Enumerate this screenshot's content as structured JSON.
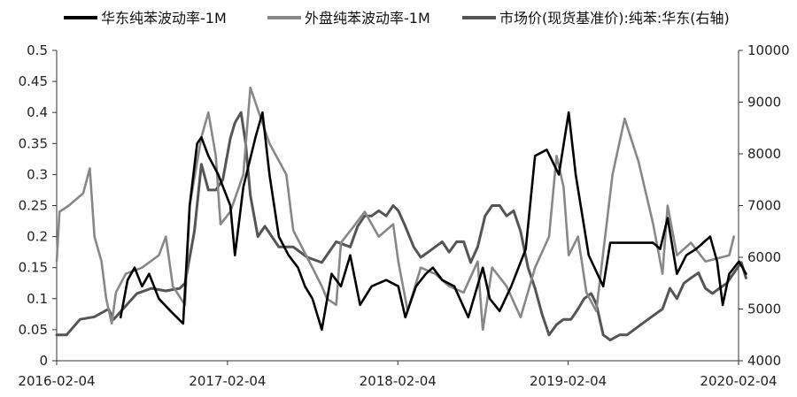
{
  "chart_data": {
    "type": "line",
    "legend": {
      "placement": "top",
      "entries": [
        "华东纯苯波动率-1M",
        "外盘纯苯波动率-1M",
        "市场价(现货基准价):纯苯:华东(右轴)"
      ]
    },
    "x_ticks": [
      "2016-02-04",
      "2017-02-04",
      "2018-02-04",
      "2019-02-04",
      "2020-02-04"
    ],
    "x_range": [
      "2016-02-04",
      "2020-02-04"
    ],
    "y_left": {
      "ticks": [
        "0",
        "0.05",
        "0.1",
        "0.15",
        "0.2",
        "0.25",
        "0.3",
        "0.35",
        "0.4",
        "0.45",
        "0.5"
      ],
      "range": [
        0,
        0.5
      ]
    },
    "y_right": {
      "ticks": [
        "4000",
        "5000",
        "6000",
        "7000",
        "8000",
        "9000",
        "10000"
      ],
      "range": [
        4000,
        10000
      ]
    },
    "grid": false,
    "series": [
      {
        "name": "华东纯苯波动率-1M",
        "axis": "left",
        "color": "#000000",
        "points": [
          [
            "2016-06-20",
            0.07
          ],
          [
            "2016-07-05",
            0.13
          ],
          [
            "2016-07-20",
            0.15
          ],
          [
            "2016-08-05",
            0.12
          ],
          [
            "2016-08-20",
            0.14
          ],
          [
            "2016-09-10",
            0.1
          ],
          [
            "2016-10-05",
            0.08
          ],
          [
            "2016-11-01",
            0.06
          ],
          [
            "2016-11-15",
            0.25
          ],
          [
            "2016-12-01",
            0.35
          ],
          [
            "2016-12-10",
            0.36
          ],
          [
            "2016-12-25",
            0.33
          ],
          [
            "2017-01-15",
            0.3
          ],
          [
            "2017-02-10",
            0.25
          ],
          [
            "2017-02-20",
            0.17
          ],
          [
            "2017-03-10",
            0.28
          ],
          [
            "2017-04-05",
            0.36
          ],
          [
            "2017-04-20",
            0.4
          ],
          [
            "2017-05-05",
            0.3
          ],
          [
            "2017-05-25",
            0.2
          ],
          [
            "2017-06-15",
            0.17
          ],
          [
            "2017-07-05",
            0.15
          ],
          [
            "2017-07-20",
            0.12
          ],
          [
            "2017-08-05",
            0.1
          ],
          [
            "2017-08-25",
            0.05
          ],
          [
            "2017-09-15",
            0.14
          ],
          [
            "2017-10-05",
            0.12
          ],
          [
            "2017-10-25",
            0.17
          ],
          [
            "2017-11-15",
            0.09
          ],
          [
            "2017-12-10",
            0.12
          ],
          [
            "2018-01-10",
            0.13
          ],
          [
            "2018-02-05",
            0.12
          ],
          [
            "2018-02-20",
            0.07
          ],
          [
            "2018-03-15",
            0.12
          ],
          [
            "2018-04-05",
            0.14
          ],
          [
            "2018-04-20",
            0.15
          ],
          [
            "2018-05-10",
            0.13
          ],
          [
            "2018-06-05",
            0.12
          ],
          [
            "2018-07-05",
            0.07
          ],
          [
            "2018-08-05",
            0.15
          ],
          [
            "2018-08-20",
            0.1
          ],
          [
            "2018-09-10",
            0.08
          ],
          [
            "2018-10-05",
            0.12
          ],
          [
            "2018-11-05",
            0.18
          ],
          [
            "2018-11-25",
            0.33
          ],
          [
            "2018-12-20",
            0.34
          ],
          [
            "2019-01-15",
            0.3
          ],
          [
            "2019-02-05",
            0.4
          ],
          [
            "2019-02-20",
            0.3
          ],
          [
            "2019-03-20",
            0.17
          ],
          [
            "2019-04-20",
            0.12
          ],
          [
            "2019-05-05",
            0.19
          ],
          [
            "2019-08-05",
            0.19
          ],
          [
            "2019-08-20",
            0.18
          ],
          [
            "2019-09-05",
            0.23
          ],
          [
            "2019-09-25",
            0.14
          ],
          [
            "2019-10-15",
            0.17
          ],
          [
            "2019-11-05",
            0.18
          ],
          [
            "2019-12-05",
            0.2
          ],
          [
            "2019-12-20",
            0.16
          ],
          [
            "2020-01-01",
            0.09
          ],
          [
            "2020-01-15",
            0.14
          ],
          [
            "2020-02-05",
            0.16
          ],
          [
            "2020-02-20",
            0.14
          ]
        ]
      },
      {
        "name": "外盘纯苯波动率-1M",
        "axis": "left",
        "color": "#888888",
        "points": [
          [
            "2016-02-04",
            0.16
          ],
          [
            "2016-02-10",
            0.24
          ],
          [
            "2016-03-01",
            0.25
          ],
          [
            "2016-04-01",
            0.27
          ],
          [
            "2016-04-15",
            0.31
          ],
          [
            "2016-04-25",
            0.2
          ],
          [
            "2016-05-10",
            0.16
          ],
          [
            "2016-05-20",
            0.1
          ],
          [
            "2016-06-01",
            0.06
          ],
          [
            "2016-06-10",
            0.11
          ],
          [
            "2016-07-01",
            0.14
          ],
          [
            "2016-08-05",
            0.15
          ],
          [
            "2016-09-10",
            0.17
          ],
          [
            "2016-09-25",
            0.2
          ],
          [
            "2016-10-10",
            0.12
          ],
          [
            "2016-11-05",
            0.09
          ],
          [
            "2016-11-15",
            0.25
          ],
          [
            "2016-12-10",
            0.36
          ],
          [
            "2016-12-25",
            0.4
          ],
          [
            "2017-01-10",
            0.33
          ],
          [
            "2017-01-20",
            0.22
          ],
          [
            "2017-02-10",
            0.24
          ],
          [
            "2017-03-10",
            0.3
          ],
          [
            "2017-03-25",
            0.44
          ],
          [
            "2017-05-05",
            0.35
          ],
          [
            "2017-06-10",
            0.3
          ],
          [
            "2017-06-25",
            0.21
          ],
          [
            "2017-08-05",
            0.15
          ],
          [
            "2017-08-25",
            0.12
          ],
          [
            "2017-09-05",
            0.1
          ],
          [
            "2017-09-25",
            0.09
          ],
          [
            "2017-10-05",
            0.19
          ],
          [
            "2017-11-05",
            0.22
          ],
          [
            "2017-11-25",
            0.24
          ],
          [
            "2017-12-25",
            0.2
          ],
          [
            "2018-01-25",
            0.22
          ],
          [
            "2018-02-05",
            0.16
          ],
          [
            "2018-02-25",
            0.08
          ],
          [
            "2018-03-25",
            0.15
          ],
          [
            "2018-04-25",
            0.14
          ],
          [
            "2018-05-25",
            0.12
          ],
          [
            "2018-06-25",
            0.11
          ],
          [
            "2018-07-25",
            0.16
          ],
          [
            "2018-08-05",
            0.05
          ],
          [
            "2018-08-25",
            0.15
          ],
          [
            "2018-09-25",
            0.12
          ],
          [
            "2018-10-25",
            0.07
          ],
          [
            "2018-11-25",
            0.15
          ],
          [
            "2018-12-25",
            0.2
          ],
          [
            "2019-01-10",
            0.33
          ],
          [
            "2019-01-25",
            0.28
          ],
          [
            "2019-02-05",
            0.17
          ],
          [
            "2019-02-25",
            0.2
          ],
          [
            "2019-03-15",
            0.11
          ],
          [
            "2019-04-05",
            0.08
          ],
          [
            "2019-05-10",
            0.3
          ],
          [
            "2019-06-05",
            0.39
          ],
          [
            "2019-07-05",
            0.32
          ],
          [
            "2019-08-05",
            0.22
          ],
          [
            "2019-08-25",
            0.14
          ],
          [
            "2019-09-05",
            0.25
          ],
          [
            "2019-09-25",
            0.17
          ],
          [
            "2019-10-25",
            0.19
          ],
          [
            "2019-11-25",
            0.16
          ],
          [
            "2020-01-15",
            0.17
          ],
          [
            "2020-01-25",
            0.2
          ]
        ]
      },
      {
        "name": "市场价(现货基准价):纯苯:华东(右轴)",
        "axis": "right",
        "color": "#555555",
        "points": [
          [
            "2016-02-04",
            4500
          ],
          [
            "2016-02-25",
            4500
          ],
          [
            "2016-03-25",
            4800
          ],
          [
            "2016-04-25",
            4850
          ],
          [
            "2016-05-25",
            5000
          ],
          [
            "2016-06-05",
            4800
          ],
          [
            "2016-06-25",
            5000
          ],
          [
            "2016-07-25",
            5300
          ],
          [
            "2016-08-25",
            5400
          ],
          [
            "2016-09-25",
            5350
          ],
          [
            "2016-10-25",
            5400
          ],
          [
            "2016-11-05",
            5500
          ],
          [
            "2016-11-25",
            6500
          ],
          [
            "2016-12-10",
            7800
          ],
          [
            "2016-12-25",
            7300
          ],
          [
            "2017-01-10",
            7300
          ],
          [
            "2017-01-25",
            7500
          ],
          [
            "2017-02-10",
            8300
          ],
          [
            "2017-02-20",
            8600
          ],
          [
            "2017-03-05",
            8800
          ],
          [
            "2017-03-15",
            8200
          ],
          [
            "2017-03-25",
            7200
          ],
          [
            "2017-04-10",
            6400
          ],
          [
            "2017-04-25",
            6600
          ],
          [
            "2017-05-25",
            6200
          ],
          [
            "2017-06-25",
            6200
          ],
          [
            "2017-07-25",
            6000
          ],
          [
            "2017-08-25",
            5900
          ],
          [
            "2017-09-25",
            6300
          ],
          [
            "2017-10-25",
            6200
          ],
          [
            "2017-11-10",
            6600
          ],
          [
            "2017-11-25",
            6800
          ],
          [
            "2017-12-10",
            6800
          ],
          [
            "2017-12-25",
            6900
          ],
          [
            "2018-01-10",
            6800
          ],
          [
            "2018-01-25",
            7000
          ],
          [
            "2018-02-05",
            6900
          ],
          [
            "2018-02-20",
            6600
          ],
          [
            "2018-03-10",
            6200
          ],
          [
            "2018-03-25",
            6000
          ],
          [
            "2018-04-10",
            6100
          ],
          [
            "2018-04-25",
            6200
          ],
          [
            "2018-05-10",
            6300
          ],
          [
            "2018-05-25",
            6100
          ],
          [
            "2018-06-10",
            6300
          ],
          [
            "2018-06-25",
            6300
          ],
          [
            "2018-07-10",
            5900
          ],
          [
            "2018-07-25",
            6200
          ],
          [
            "2018-08-10",
            6800
          ],
          [
            "2018-08-25",
            7000
          ],
          [
            "2018-09-10",
            7000
          ],
          [
            "2018-09-25",
            6800
          ],
          [
            "2018-10-10",
            6900
          ],
          [
            "2018-10-25",
            6500
          ],
          [
            "2018-11-10",
            5800
          ],
          [
            "2018-11-25",
            5400
          ],
          [
            "2018-12-10",
            4900
          ],
          [
            "2018-12-25",
            4500
          ],
          [
            "2019-01-10",
            4700
          ],
          [
            "2019-01-25",
            4800
          ],
          [
            "2019-02-10",
            4800
          ],
          [
            "2019-02-25",
            5000
          ],
          [
            "2019-03-10",
            5200
          ],
          [
            "2019-03-25",
            5300
          ],
          [
            "2019-04-05",
            5100
          ],
          [
            "2019-04-20",
            4500
          ],
          [
            "2019-05-05",
            4400
          ],
          [
            "2019-05-25",
            4500
          ],
          [
            "2019-06-10",
            4500
          ],
          [
            "2019-06-25",
            4600
          ],
          [
            "2019-07-25",
            4800
          ],
          [
            "2019-08-25",
            5000
          ],
          [
            "2019-09-10",
            5400
          ],
          [
            "2019-09-25",
            5200
          ],
          [
            "2019-10-10",
            5500
          ],
          [
            "2019-10-25",
            5600
          ],
          [
            "2019-11-10",
            5700
          ],
          [
            "2019-11-25",
            5400
          ],
          [
            "2019-12-10",
            5300
          ],
          [
            "2019-12-25",
            5400
          ],
          [
            "2020-01-10",
            5500
          ],
          [
            "2020-01-25",
            5700
          ],
          [
            "2020-02-10",
            5900
          ],
          [
            "2020-02-20",
            5600
          ]
        ]
      }
    ]
  }
}
